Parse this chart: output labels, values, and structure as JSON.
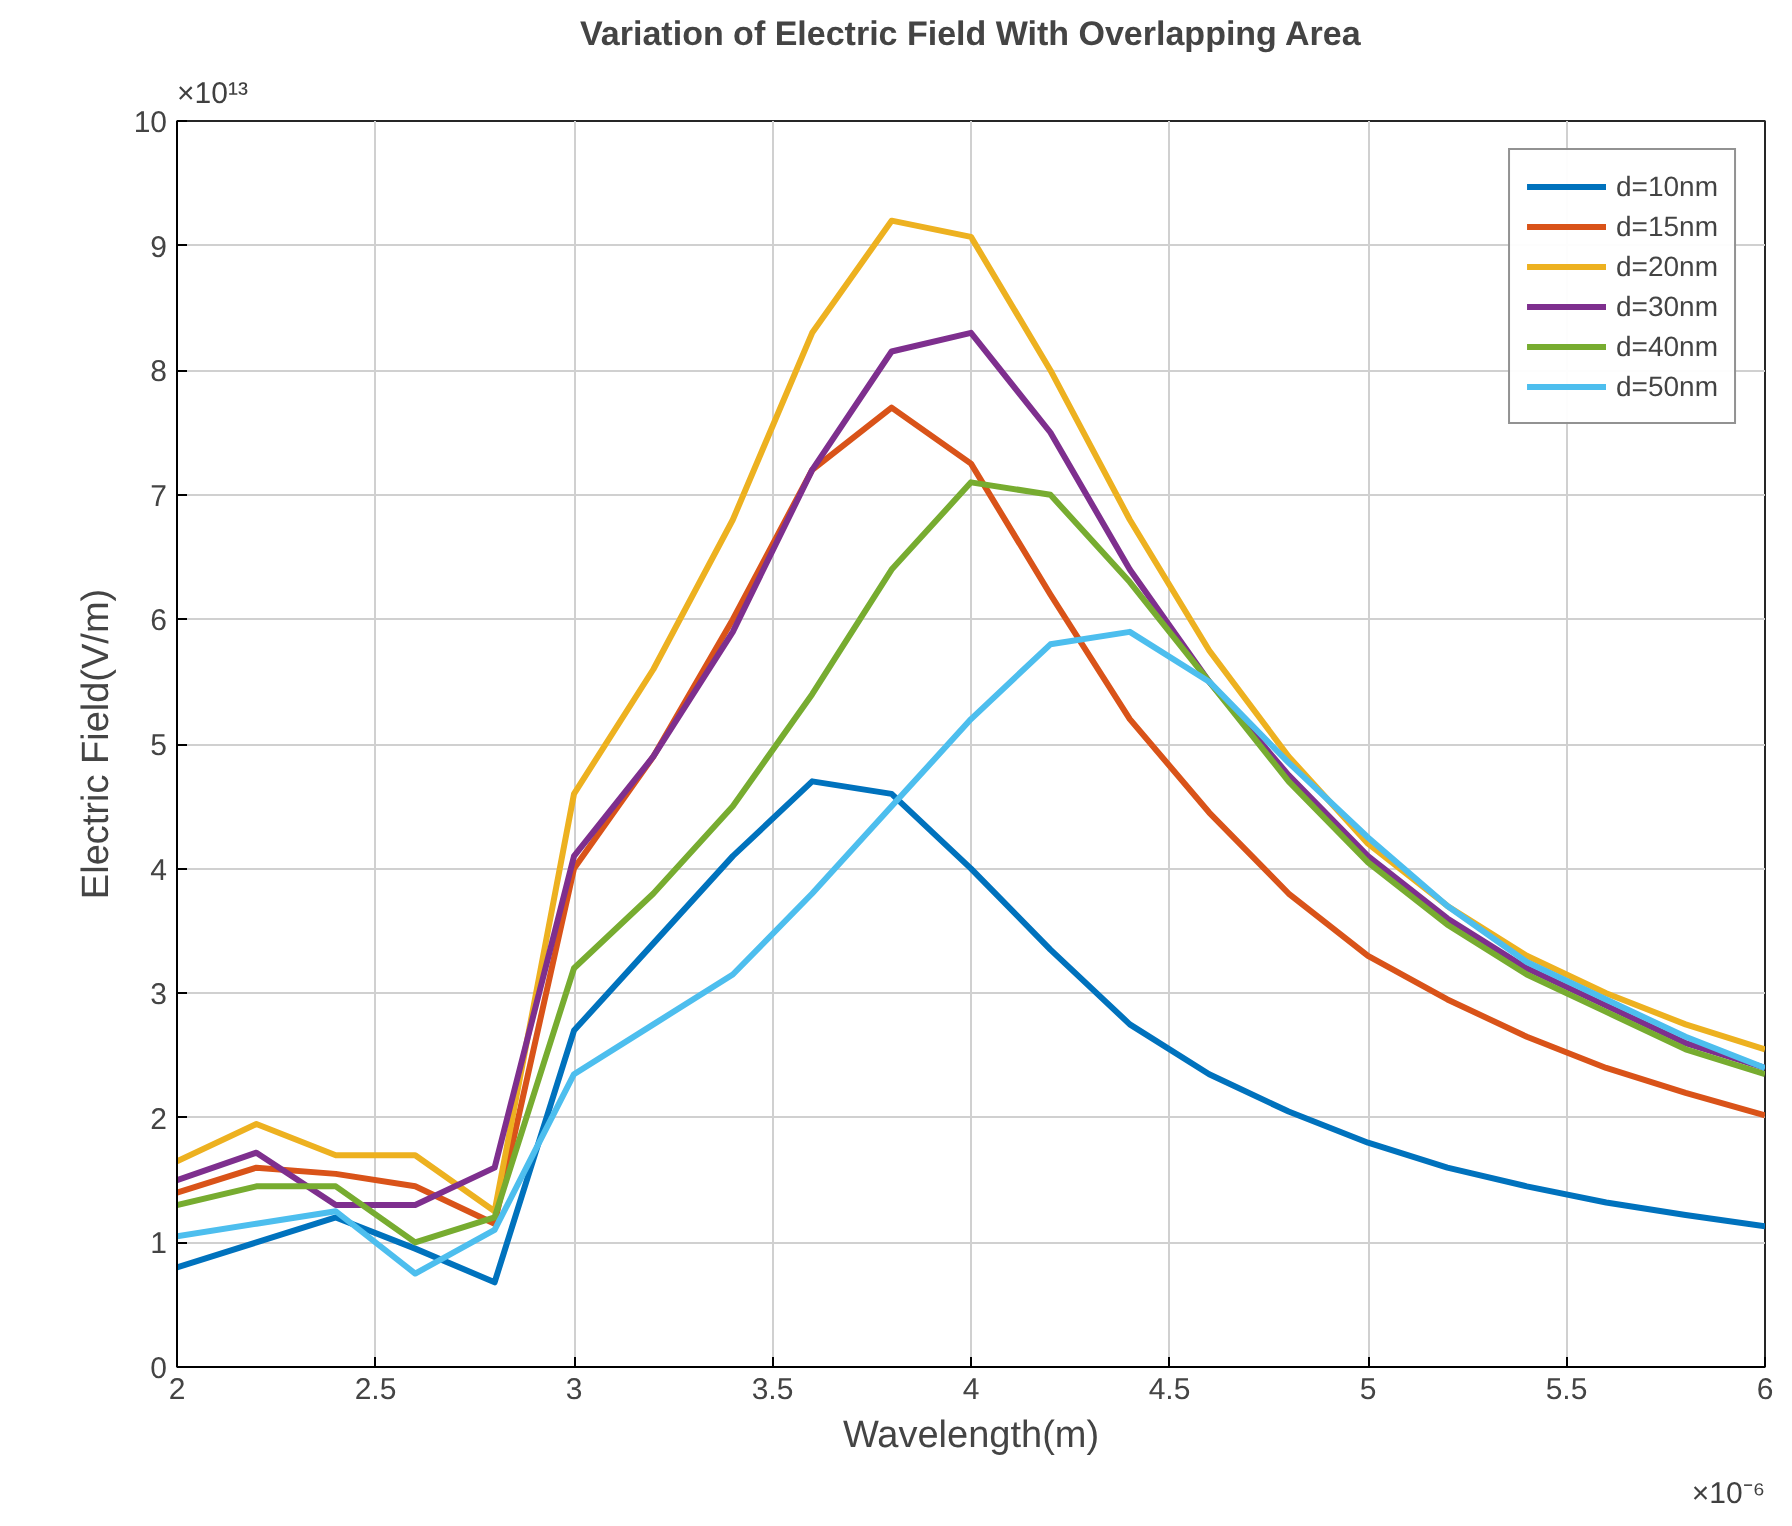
{
  "chart_data": {
    "type": "line",
    "title": "Variation of Electric Field With Overlapping Area",
    "xlabel": "Wavelength(m)",
    "ylabel": "Electric Field(V/m)",
    "annotations": [
      "×10¹³",
      "×10⁻⁶"
    ],
    "x": [
      2,
      2.2,
      2.4,
      2.6,
      2.8,
      3,
      3.2,
      3.4,
      3.6,
      3.8,
      4,
      4.2,
      4.4,
      4.6,
      4.8,
      5,
      5.2,
      5.4,
      5.6,
      5.8,
      6
    ],
    "xlim": [
      2,
      6
    ],
    "xticks": [
      2,
      2.5,
      3,
      3.5,
      4,
      4.5,
      5,
      5.5,
      6
    ],
    "ylim": [
      0,
      10
    ],
    "yticks": [
      0,
      1,
      2,
      3,
      4,
      5,
      6,
      7,
      8,
      9,
      10
    ],
    "grid": true,
    "legend": "top right",
    "line_style": "solid",
    "marker": "none",
    "series": [
      {
        "name": "d=10nm",
        "color": "#0072bd",
        "values": [
          0.8,
          1.0,
          1.2,
          0.95,
          0.68,
          2.7,
          3.4,
          4.1,
          4.7,
          4.6,
          4.0,
          3.35,
          2.75,
          2.35,
          2.05,
          1.8,
          1.6,
          1.45,
          1.32,
          1.22,
          1.13
        ]
      },
      {
        "name": "d=15nm",
        "color": "#d95319",
        "values": [
          1.4,
          1.6,
          1.55,
          1.45,
          1.15,
          4.0,
          4.9,
          6.0,
          7.2,
          7.7,
          7.25,
          6.2,
          5.2,
          4.45,
          3.8,
          3.3,
          2.95,
          2.65,
          2.4,
          2.2,
          2.02
        ]
      },
      {
        "name": "d=20nm",
        "color": "#edb120",
        "values": [
          1.65,
          1.95,
          1.7,
          1.7,
          1.25,
          4.6,
          5.6,
          6.8,
          8.3,
          9.2,
          9.07,
          8.0,
          6.8,
          5.75,
          4.9,
          4.2,
          3.7,
          3.3,
          3.0,
          2.75,
          2.55
        ]
      },
      {
        "name": "d=30nm",
        "color": "#7e2f8e",
        "values": [
          1.5,
          1.72,
          1.3,
          1.3,
          1.6,
          4.1,
          4.9,
          5.9,
          7.2,
          8.15,
          8.3,
          7.5,
          6.4,
          5.5,
          4.75,
          4.1,
          3.6,
          3.2,
          2.9,
          2.6,
          2.4
        ]
      },
      {
        "name": "d=40nm",
        "color": "#77ac30",
        "values": [
          1.3,
          1.45,
          1.45,
          1.0,
          1.2,
          3.2,
          3.8,
          4.5,
          5.4,
          6.4,
          7.1,
          7.0,
          6.3,
          5.5,
          4.7,
          4.05,
          3.55,
          3.15,
          2.85,
          2.55,
          2.35
        ]
      },
      {
        "name": "d=50nm",
        "color": "#4dbeee",
        "values": [
          1.05,
          1.15,
          1.25,
          0.75,
          1.1,
          2.35,
          2.75,
          3.15,
          3.8,
          4.5,
          5.2,
          5.8,
          5.9,
          5.5,
          4.85,
          4.25,
          3.7,
          3.25,
          2.95,
          2.65,
          2.4
        ]
      }
    ]
  }
}
